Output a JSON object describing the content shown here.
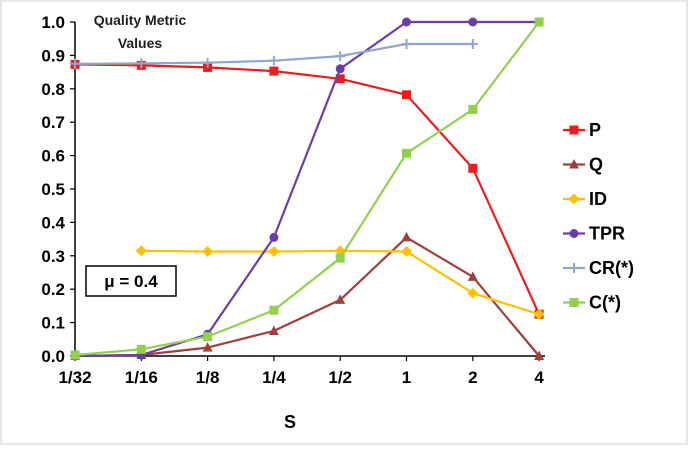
{
  "chart_data": {
    "type": "line",
    "title_line1": "Quality Metric",
    "title_line2": "Values",
    "xlabel": "S",
    "ylabel": "",
    "categories": [
      "1/32",
      "1/16",
      "1/8",
      "1/4",
      "1/2",
      "1",
      "2",
      "4"
    ],
    "ylim": [
      0,
      1.0
    ],
    "yticks": [
      "0.0",
      "0.1",
      "0.2",
      "0.3",
      "0.4",
      "0.5",
      "0.6",
      "0.7",
      "0.8",
      "0.9",
      "1.0"
    ],
    "grid": false,
    "legend_position": "right",
    "annotation": "μ = 0.4",
    "series": [
      {
        "name": "P",
        "color": "#ee1c1c",
        "marker": "square",
        "values": [
          0.873,
          0.87,
          0.864,
          0.853,
          0.83,
          0.782,
          0.562,
          0.125
        ]
      },
      {
        "name": "Q",
        "color": "#a0403c",
        "marker": "triangle",
        "values": [
          0.0,
          0.003,
          0.025,
          0.075,
          0.168,
          0.355,
          0.237,
          0.0
        ]
      },
      {
        "name": "ID",
        "color": "#ffc000",
        "marker": "diamond",
        "values": [
          null,
          0.315,
          0.313,
          0.313,
          0.315,
          0.313,
          0.188,
          0.125
        ]
      },
      {
        "name": "TPR",
        "color": "#6a3ea8",
        "marker": "circle",
        "values": [
          0.0,
          0.003,
          0.065,
          0.355,
          0.86,
          1.0,
          1.0,
          1.0
        ]
      },
      {
        "name": "CR(*)",
        "color": "#8ea6d4",
        "marker": "plus",
        "values": [
          0.875,
          0.876,
          0.878,
          0.884,
          0.898,
          0.934,
          0.934,
          null
        ]
      },
      {
        "name": "C(*)",
        "color": "#92d050",
        "marker": "square",
        "values": [
          0.003,
          0.02,
          0.058,
          0.137,
          0.293,
          0.607,
          0.738,
          1.0
        ]
      }
    ]
  }
}
